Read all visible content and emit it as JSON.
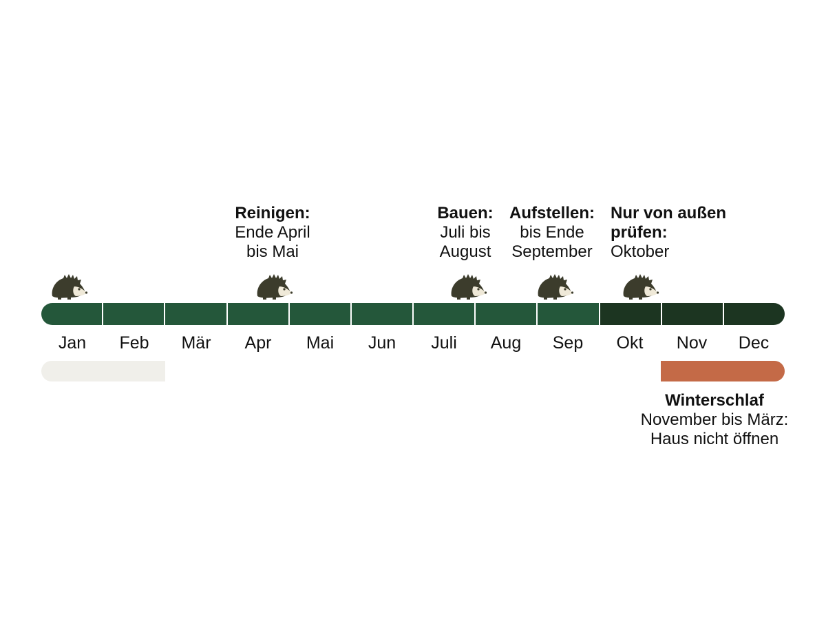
{
  "months": [
    "Jan",
    "Feb",
    "Mär",
    "Apr",
    "Mai",
    "Jun",
    "Juli",
    "Aug",
    "Sep",
    "Okt",
    "Nov",
    "Dec"
  ],
  "colors": {
    "active_green": "#24573a",
    "dark_green": "#1c3521",
    "hibernation_light": "#f0efea",
    "hibernation_accent": "#c46a47",
    "hedgehog_body": "#3c3c2c",
    "hedgehog_face": "#efe9d8"
  },
  "active_months": [
    "Jan",
    "Feb",
    "Mär",
    "Apr",
    "Mai",
    "Jun",
    "Juli",
    "Aug",
    "Sep"
  ],
  "quiet_months": [
    "Okt",
    "Nov",
    "Dec"
  ],
  "hedgehog_icon": "hedgehog-icon",
  "annotations": [
    {
      "title": "Reinigen:",
      "lines": [
        "Ende April",
        "bis Mai"
      ],
      "month": "Apr"
    },
    {
      "title": "Bauen:",
      "lines": [
        "Juli bis",
        "August"
      ],
      "month": "Juli"
    },
    {
      "title": "Aufstellen:",
      "lines": [
        "bis Ende",
        "September"
      ],
      "month": "Sep"
    },
    {
      "title": "Nur von außen prüfen:",
      "title_lines": [
        "Nur von außen",
        "prüfen:"
      ],
      "lines": [
        "Oktober"
      ],
      "month": "Okt"
    }
  ],
  "hibernation": {
    "title": "Winterschlaf",
    "lines": [
      "November bis März:",
      "Haus nicht öffnen"
    ],
    "start_month": "Nov",
    "end_month": "Mär"
  },
  "hedgehog_months": [
    "Jan",
    "Apr",
    "Juli",
    "Sep",
    "Okt"
  ]
}
